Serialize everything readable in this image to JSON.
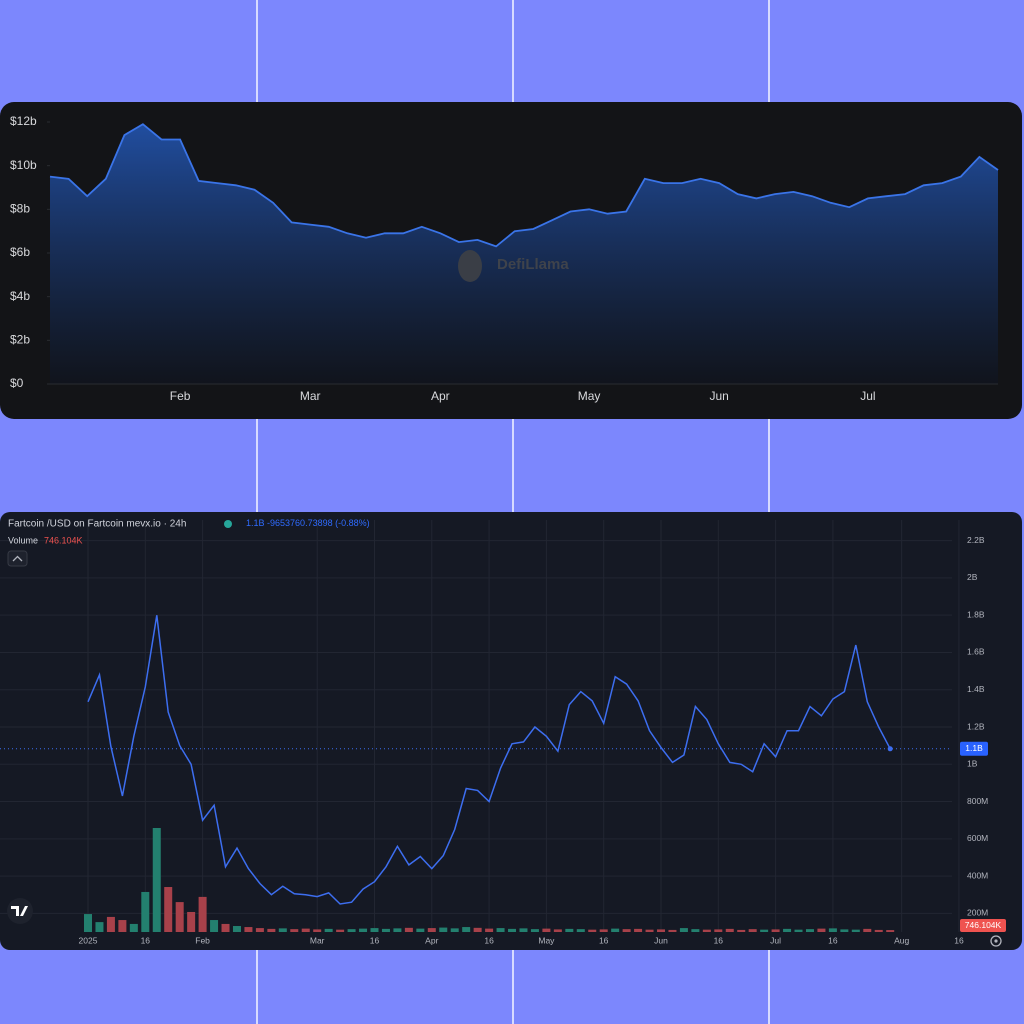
{
  "chart_data": [
    {
      "type": "area",
      "watermark": "DefiLlama",
      "categories": [
        null,
        null,
        null,
        null,
        null,
        null,
        null,
        "Feb",
        null,
        null,
        null,
        null,
        null,
        null,
        "Mar",
        null,
        null,
        null,
        null,
        null,
        null,
        "Apr",
        null,
        null,
        null,
        null,
        null,
        null,
        null,
        "May",
        null,
        null,
        null,
        null,
        null,
        null,
        "Jun",
        null,
        null,
        null,
        null,
        null,
        null,
        null,
        "Jul",
        null,
        null,
        null,
        null,
        null,
        null,
        null
      ],
      "values": [
        9.5,
        9.4,
        8.6,
        9.4,
        11.4,
        11.9,
        11.2,
        11.2,
        9.3,
        9.2,
        9.1,
        8.9,
        8.3,
        7.4,
        7.3,
        7.2,
        6.9,
        6.7,
        6.9,
        6.9,
        7.2,
        6.9,
        6.5,
        6.6,
        6.3,
        7.0,
        7.1,
        7.5,
        7.9,
        8.0,
        7.8,
        7.9,
        9.4,
        9.2,
        9.2,
        9.4,
        9.2,
        8.7,
        8.5,
        8.7,
        8.8,
        8.6,
        8.3,
        8.1,
        8.5,
        8.6,
        8.7,
        9.1,
        9.2,
        9.5,
        10.4,
        9.8
      ],
      "color": "#3a74e8",
      "ylim": [
        0,
        12
      ],
      "yticks": [
        {
          "value": 0,
          "label": "$0"
        },
        {
          "value": 2,
          "label": "$2b"
        },
        {
          "value": 4,
          "label": "$4b"
        },
        {
          "value": 6,
          "label": "$6b"
        },
        {
          "value": 8,
          "label": "$8b"
        },
        {
          "value": 10,
          "label": "$10b"
        },
        {
          "value": 12,
          "label": "$12b"
        }
      ],
      "grid": false
    },
    {
      "type": "line",
      "title": "Fartcoin /USD on Fartcoin mevx.io · 24h",
      "change": "-9653760.73898 (-0.88%)",
      "categories": [
        "2025",
        null,
        null,
        null,
        null,
        "16",
        null,
        null,
        null,
        null,
        "Feb",
        null,
        null,
        null,
        null,
        null,
        null,
        null,
        null,
        null,
        "Mar",
        null,
        null,
        null,
        null,
        "16",
        null,
        null,
        null,
        null,
        "Apr",
        null,
        null,
        null,
        null,
        "16",
        null,
        null,
        null,
        null,
        "May",
        null,
        null,
        null,
        null,
        "16",
        null,
        null,
        null,
        null,
        "Jun",
        null,
        null,
        null,
        null,
        "16",
        null,
        null,
        null,
        null,
        "Jul",
        null,
        null,
        null,
        null,
        "16",
        null,
        null,
        null,
        null,
        null,
        "Aug",
        null,
        null,
        null,
        null,
        "16",
        null
      ],
      "values": [
        1335,
        1480,
        1095,
        830,
        1150,
        1415,
        1800,
        1280,
        1100,
        1000,
        700,
        780,
        450,
        550,
        440,
        360,
        300,
        345,
        305,
        300,
        290,
        310,
        250,
        260,
        330,
        370,
        450,
        560,
        460,
        505,
        440,
        510,
        650,
        870,
        860,
        800,
        980,
        1110,
        1120,
        1200,
        1150,
        1070,
        1320,
        1390,
        1340,
        1220,
        1470,
        1430,
        1340,
        1180,
        1090,
        1010,
        1050,
        1310,
        1240,
        1110,
        1010,
        1000,
        960,
        1110,
        1040,
        1180,
        1180,
        1310,
        1260,
        1350,
        1390,
        1640,
        1335,
        1200,
        1083,
        null,
        null,
        null,
        null,
        null,
        null,
        null
      ],
      "color": "#3d6ef0",
      "ylim": [
        100,
        2300
      ],
      "yticks": [
        {
          "value": 200,
          "label": "200M"
        },
        {
          "value": 400,
          "label": "400M"
        },
        {
          "value": 600,
          "label": "600M"
        },
        {
          "value": 800,
          "label": "800M"
        },
        {
          "value": 1000,
          "label": "1B"
        },
        {
          "value": 1200,
          "label": "1.2B"
        },
        {
          "value": 1400,
          "label": "1.4B"
        },
        {
          "value": 1600,
          "label": "1.6B"
        },
        {
          "value": 1800,
          "label": "1.8B"
        },
        {
          "value": 2000,
          "label": "2B"
        },
        {
          "value": 2200,
          "label": "2.2B"
        }
      ],
      "grid": true,
      "last_price": {
        "value": 1083,
        "label": "1.1B"
      },
      "volume": {
        "name": "Volume",
        "values": [
          6900,
          3800,
          5800,
          4600,
          3100,
          15400,
          40000,
          17300,
          11500,
          7700,
          13500,
          4600,
          3100,
          2300,
          1900,
          1500,
          1200,
          1400,
          1100,
          1300,
          1000,
          1200,
          900,
          1100,
          1300,
          1500,
          1200,
          1400,
          1600,
          1300,
          1500,
          1700,
          1400,
          1900,
          1600,
          1300,
          1500,
          1200,
          1400,
          1100,
          1300,
          1000,
          1200,
          1100,
          900,
          1000,
          1300,
          1100,
          1200,
          900,
          1000,
          800,
          1500,
          1100,
          900,
          1000,
          1200,
          800,
          1100,
          900,
          1000,
          1200,
          900,
          1100,
          1300,
          1400,
          1000,
          900,
          1200,
          800,
          746.104,
          null,
          null,
          null,
          null,
          null,
          null,
          null
        ],
        "ylim": [
          0,
          50000
        ],
        "up_color": "#23806f",
        "down_color": "#a8414a",
        "last": {
          "value": 746.104,
          "label": "746.104K"
        }
      }
    }
  ]
}
